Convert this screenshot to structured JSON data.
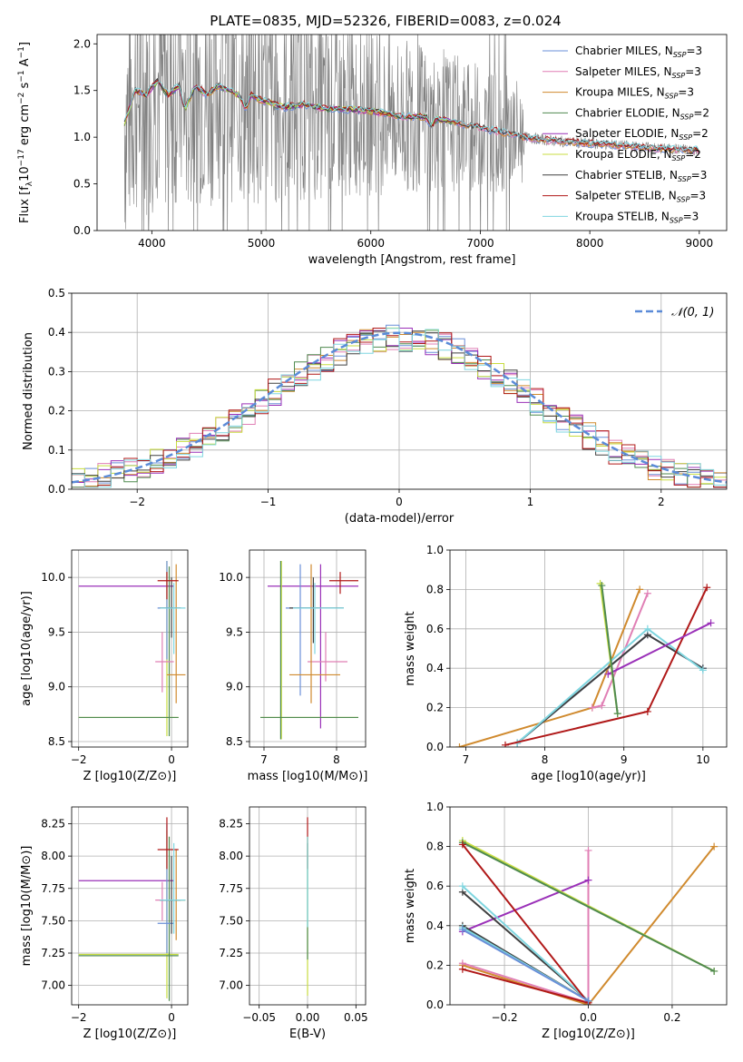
{
  "figure_title": "PLATE=0835, MJD=52326, FIBERID=0083, z=0.024",
  "colors": {
    "Chabrier MILES": "#6a8fd8",
    "Salpeter MILES": "#e07fb5",
    "Kroupa MILES": "#d08a2e",
    "Chabrier ELODIE": "#4f8a4f",
    "Salpeter ELODIE": "#9a30b8",
    "Kroupa ELODIE": "#c8dd40",
    "Chabrier STELIB": "#404040",
    "Salpeter STELIB": "#b01818",
    "Kroupa STELIB": "#7fd6e0",
    "data": "#808080",
    "normal": "#5b8bd8"
  },
  "chart_data": [
    {
      "type": "line",
      "name": "spectrum",
      "xlabel": "wavelength [Angstrom, rest frame]",
      "ylabel": "Flux [f_λ10^-17 erg cm^-2 s^-1 A^-1]",
      "xlim": [
        3500,
        9250
      ],
      "ylim": [
        0,
        2.1
      ],
      "xticks": [
        4000,
        5000,
        6000,
        7000,
        8000,
        9000
      ],
      "yticks": [
        0.0,
        0.5,
        1.0,
        1.5,
        2.0
      ],
      "legend_position": "upper-right",
      "legend": [
        {
          "name": "Chabrier MILES",
          "sub": "SSP",
          "n": "3"
        },
        {
          "name": "Salpeter MILES",
          "sub": "SSP",
          "n": "3"
        },
        {
          "name": "Kroupa MILES",
          "sub": "SSP",
          "n": "3"
        },
        {
          "name": "Chabrier ELODIE",
          "sub": "SSP",
          "n": "2"
        },
        {
          "name": "Salpeter ELODIE",
          "sub": "SSP",
          "n": "2"
        },
        {
          "name": "Kroupa ELODIE",
          "sub": "SSP",
          "n": "2"
        },
        {
          "name": "Chabrier STELIB",
          "sub": "SSP",
          "n": "3"
        },
        {
          "name": "Salpeter STELIB",
          "sub": "SSP",
          "n": "3"
        },
        {
          "name": "Kroupa STELIB",
          "sub": "SSP",
          "n": "3"
        }
      ],
      "model_continuum": [
        [
          3750,
          1.15
        ],
        [
          3850,
          1.5
        ],
        [
          3950,
          1.45
        ],
        [
          4050,
          1.6
        ],
        [
          4150,
          1.45
        ],
        [
          4250,
          1.55
        ],
        [
          4300,
          1.3
        ],
        [
          4400,
          1.55
        ],
        [
          4500,
          1.45
        ],
        [
          4600,
          1.55
        ],
        [
          4700,
          1.5
        ],
        [
          4800,
          1.45
        ],
        [
          4860,
          1.3
        ],
        [
          4900,
          1.45
        ],
        [
          5000,
          1.4
        ],
        [
          5200,
          1.32
        ],
        [
          5400,
          1.35
        ],
        [
          5600,
          1.3
        ],
        [
          5800,
          1.3
        ],
        [
          6000,
          1.28
        ],
        [
          6300,
          1.22
        ],
        [
          6500,
          1.22
        ],
        [
          6560,
          1.12
        ],
        [
          6600,
          1.2
        ],
        [
          6800,
          1.15
        ],
        [
          7000,
          1.1
        ],
        [
          7200,
          1.05
        ],
        [
          7400,
          1.0
        ],
        [
          7600,
          0.97
        ],
        [
          7800,
          0.95
        ],
        [
          8000,
          0.93
        ],
        [
          8200,
          0.92
        ],
        [
          8400,
          0.9
        ],
        [
          8600,
          0.88
        ],
        [
          8800,
          0.87
        ],
        [
          9000,
          0.86
        ]
      ]
    },
    {
      "type": "histogram",
      "name": "residuals",
      "xlabel": "(data-model)/error",
      "ylabel": "Normed distribution",
      "xlim": [
        -2.5,
        2.5
      ],
      "ylim": [
        0,
        0.5
      ],
      "xticks": [
        -2,
        -1,
        0,
        1,
        2
      ],
      "yticks": [
        0.0,
        0.1,
        0.2,
        0.3,
        0.4,
        0.5
      ],
      "bin_width": 0.1,
      "legend_position": "upper-right",
      "legend": [
        "𝒩(0, 1)"
      ],
      "reference_curve": "normal(0,1)"
    },
    {
      "type": "scatter",
      "name": "age-vs-Z",
      "xlabel": "Z [log10(Z/Z⊙)]",
      "ylabel": "age  [log10(age/yr)]",
      "xlim": [
        -2.15,
        0.35
      ],
      "ylim": [
        8.45,
        10.25
      ],
      "xticks": [
        -2,
        0
      ],
      "yticks": [
        8.5,
        9.0,
        9.5,
        10.0
      ],
      "points": [
        {
          "m": "Salpeter ELODIE",
          "x": -0.45,
          "xl": -2.0,
          "xh": 0.05,
          "y": 9.92,
          "yl": 9.92,
          "yh": 9.92
        },
        {
          "m": "Kroupa ELODIE",
          "x": -0.1,
          "xl": -2.0,
          "xh": 0.15,
          "y": 8.72,
          "yl": 8.55,
          "yh": 10.15
        },
        {
          "m": "Chabrier ELODIE",
          "x": -0.05,
          "xl": -2.0,
          "xh": 0.15,
          "y": 8.72,
          "yl": 8.55,
          "yh": 10.1
        },
        {
          "m": "Chabrier MILES",
          "x": -0.1,
          "xl": -0.3,
          "xh": 0.05,
          "y": 9.72,
          "yl": 9.25,
          "yh": 10.15
        },
        {
          "m": "Salpeter MILES",
          "x": -0.2,
          "xl": -0.35,
          "xh": 0.05,
          "y": 9.23,
          "yl": 8.95,
          "yh": 9.5
        },
        {
          "m": "Kroupa MILES",
          "x": 0.1,
          "xl": -0.1,
          "xh": 0.3,
          "y": 9.11,
          "yl": 8.85,
          "yh": 10.12
        },
        {
          "m": "Chabrier STELIB",
          "x": 0.0,
          "xl": -0.25,
          "xh": 0.2,
          "y": 9.72,
          "yl": 9.45,
          "yh": 10.0
        },
        {
          "m": "Salpeter STELIB",
          "x": -0.1,
          "xl": -0.3,
          "xh": 0.15,
          "y": 9.97,
          "yl": 9.8,
          "yh": 10.05
        },
        {
          "m": "Kroupa STELIB",
          "x": 0.05,
          "xl": -0.25,
          "xh": 0.3,
          "y": 9.72,
          "yl": 9.3,
          "yh": 9.95
        }
      ]
    },
    {
      "type": "scatter",
      "name": "age-vs-mass",
      "xlabel": "mass [log10(M/M⊙)]",
      "ylabel": "",
      "xlim": [
        6.8,
        8.4
      ],
      "ylim": [
        8.45,
        10.25
      ],
      "xticks": [
        7,
        8
      ],
      "yticks": [
        8.5,
        9.0,
        9.5,
        10.0
      ],
      "points": [
        {
          "m": "Salpeter ELODIE",
          "x": 7.78,
          "xl": 7.05,
          "xh": 8.3,
          "y": 9.92,
          "yl": 8.62,
          "yh": 10.12
        },
        {
          "m": "Kroupa ELODIE",
          "x": 7.24,
          "xl": 6.95,
          "xh": 8.3,
          "y": 8.72,
          "yl": 8.52,
          "yh": 10.15
        },
        {
          "m": "Chabrier ELODIE",
          "x": 7.23,
          "xl": 6.95,
          "xh": 8.3,
          "y": 8.72,
          "yl": 8.52,
          "yh": 10.15
        },
        {
          "m": "Chabrier MILES",
          "x": 7.5,
          "xl": 7.3,
          "xh": 7.75,
          "y": 9.72,
          "yl": 8.92,
          "yh": 10.12
        },
        {
          "m": "Salpeter MILES",
          "x": 7.85,
          "xl": 7.6,
          "xh": 8.15,
          "y": 9.23,
          "yl": 9.05,
          "yh": 9.5
        },
        {
          "m": "Kroupa MILES",
          "x": 7.65,
          "xl": 7.35,
          "xh": 8.05,
          "y": 9.11,
          "yl": 8.85,
          "yh": 10.12
        },
        {
          "m": "Chabrier STELIB",
          "x": 7.68,
          "xl": 7.35,
          "xh": 8.1,
          "y": 9.72,
          "yl": 9.4,
          "yh": 10.0
        },
        {
          "m": "Salpeter STELIB",
          "x": 8.05,
          "xl": 7.9,
          "xh": 8.3,
          "y": 9.97,
          "yl": 9.85,
          "yh": 10.05
        },
        {
          "m": "Kroupa STELIB",
          "x": 7.7,
          "xl": 7.4,
          "xh": 8.1,
          "y": 9.72,
          "yl": 9.3,
          "yh": 9.95
        }
      ]
    },
    {
      "type": "line",
      "name": "weight-vs-age",
      "xlabel": "age  [log10(age/yr)]",
      "ylabel": "mass weight",
      "xlim": [
        6.8,
        10.3
      ],
      "ylim": [
        0,
        1.0
      ],
      "xticks": [
        7,
        8,
        9,
        10
      ],
      "yticks": [
        0.0,
        0.2,
        0.4,
        0.6,
        0.8,
        1.0
      ],
      "series": [
        {
          "m": "Kroupa MILES",
          "x": [
            6.92,
            8.6,
            9.2
          ],
          "y": [
            0.0,
            0.2,
            0.8
          ]
        },
        {
          "m": "Salpeter MILES",
          "x": [
            8.6,
            8.72,
            9.3
          ],
          "y": [
            0.2,
            0.21,
            0.78
          ]
        },
        {
          "m": "Chabrier MILES",
          "x": [
            7.65,
            9.3,
            10.0
          ],
          "y": [
            0.02,
            0.57,
            0.4
          ]
        },
        {
          "m": "Chabrier STELIB",
          "x": [
            7.65,
            9.3,
            10.0
          ],
          "y": [
            0.02,
            0.57,
            0.4
          ]
        },
        {
          "m": "Kroupa STELIB",
          "x": [
            7.65,
            9.3,
            10.0
          ],
          "y": [
            0.02,
            0.6,
            0.39
          ]
        },
        {
          "m": "Salpeter STELIB",
          "x": [
            7.5,
            9.3,
            10.05
          ],
          "y": [
            0.01,
            0.18,
            0.81
          ]
        },
        {
          "m": "Salpeter ELODIE",
          "x": [
            8.8,
            10.1
          ],
          "y": [
            0.37,
            0.63
          ]
        },
        {
          "m": "Kroupa ELODIE",
          "x": [
            8.7,
            8.92
          ],
          "y": [
            0.83,
            0.17
          ]
        },
        {
          "m": "Chabrier ELODIE",
          "x": [
            8.72,
            8.92
          ],
          "y": [
            0.82,
            0.17
          ]
        }
      ]
    },
    {
      "type": "scatter",
      "name": "mass-vs-Z",
      "xlabel": "Z [log10(Z/Z⊙)]",
      "ylabel": "mass [log10(M/M⊙)]",
      "xlim": [
        -2.15,
        0.35
      ],
      "ylim": [
        6.85,
        8.38
      ],
      "xticks": [
        -2,
        0
      ],
      "yticks": [
        7.0,
        7.25,
        7.5,
        7.75,
        8.0,
        8.25
      ],
      "points": [
        {
          "m": "Salpeter ELODIE",
          "x": -0.45,
          "xl": -2.0,
          "xh": 0.05,
          "y": 7.81,
          "yl": 7.81,
          "yh": 7.81
        },
        {
          "m": "Kroupa ELODIE",
          "x": -0.1,
          "xl": -2.0,
          "xh": 0.15,
          "y": 7.24,
          "yl": 6.9,
          "yh": 8.2
        },
        {
          "m": "Chabrier ELODIE",
          "x": -0.05,
          "xl": -2.0,
          "xh": 0.15,
          "y": 7.23,
          "yl": 6.88,
          "yh": 8.15
        },
        {
          "m": "Chabrier MILES",
          "x": -0.1,
          "xl": -0.3,
          "xh": 0.05,
          "y": 7.48,
          "yl": 7.25,
          "yh": 8.25
        },
        {
          "m": "Salpeter MILES",
          "x": -0.2,
          "xl": -0.35,
          "xh": 0.05,
          "y": 7.66,
          "yl": 7.5,
          "yh": 7.8
        },
        {
          "m": "Kroupa MILES",
          "x": 0.1,
          "xl": -0.1,
          "xh": 0.3,
          "y": 7.66,
          "yl": 7.35,
          "yh": 8.05
        },
        {
          "m": "Chabrier STELIB",
          "x": 0.0,
          "xl": -0.25,
          "xh": 0.2,
          "y": 7.66,
          "yl": 7.4,
          "yh": 8.0
        },
        {
          "m": "Salpeter STELIB",
          "x": -0.1,
          "xl": -0.3,
          "xh": 0.15,
          "y": 8.05,
          "yl": 7.9,
          "yh": 8.3
        },
        {
          "m": "Kroupa STELIB",
          "x": 0.05,
          "xl": -0.25,
          "xh": 0.3,
          "y": 7.66,
          "yl": 7.4,
          "yh": 8.1
        }
      ]
    },
    {
      "type": "scatter",
      "name": "mass-vs-EBV",
      "xlabel": "E(B-V)",
      "ylabel": "",
      "xlim": [
        -0.06,
        0.06
      ],
      "ylim": [
        6.85,
        8.38
      ],
      "xticks": [
        -0.05,
        0.0,
        0.05
      ],
      "xticklabels": [
        "−0.05",
        "0.00",
        "0.05"
      ],
      "yticks": [
        7.0,
        7.25,
        7.5,
        7.75,
        8.0,
        8.25
      ],
      "points": [
        {
          "m": "Kroupa ELODIE",
          "x": 0.0,
          "yl": 6.92,
          "yh": 8.15
        },
        {
          "m": "Chabrier ELODIE",
          "x": 0.0,
          "yl": 7.2,
          "yh": 8.1
        },
        {
          "m": "Salpeter STELIB",
          "x": 0.0,
          "yl": 7.9,
          "yh": 8.3
        },
        {
          "m": "Kroupa STELIB",
          "x": 0.0,
          "yl": 7.45,
          "yh": 8.15
        }
      ]
    },
    {
      "type": "line",
      "name": "weight-vs-Z",
      "xlabel": "Z [log10(Z/Z⊙)]",
      "ylabel": "mass weight",
      "xlim": [
        -0.33,
        0.33
      ],
      "ylim": [
        0,
        1.0
      ],
      "xticks": [
        -0.2,
        0.0,
        0.2
      ],
      "xticklabels": [
        "−0.2",
        "0.0",
        "0.2"
      ],
      "yticks": [
        0.0,
        0.2,
        0.4,
        0.6,
        0.8,
        1.0
      ],
      "series": [
        {
          "m": "Kroupa MILES",
          "x": [
            -0.3,
            0.0,
            0.3
          ],
          "y": [
            0.2,
            0.0,
            0.8
          ]
        },
        {
          "m": "Salpeter MILES",
          "x": [
            -0.3,
            0.0,
            0.0
          ],
          "y": [
            0.21,
            0.01,
            0.78
          ]
        },
        {
          "m": "Salpeter ELODIE",
          "x": [
            -0.3,
            0.0
          ],
          "y": [
            0.37,
            0.63
          ]
        },
        {
          "m": "Kroupa ELODIE",
          "x": [
            -0.3,
            0.3
          ],
          "y": [
            0.83,
            0.17
          ]
        },
        {
          "m": "Chabrier ELODIE",
          "x": [
            -0.3,
            0.3
          ],
          "y": [
            0.82,
            0.17
          ]
        },
        {
          "m": "Chabrier STELIB",
          "x": [
            -0.3,
            0.0,
            -0.3
          ],
          "y": [
            0.4,
            0.02,
            0.57
          ]
        },
        {
          "m": "Kroupa STELIB",
          "x": [
            -0.3,
            0.0,
            -0.3
          ],
          "y": [
            0.39,
            0.02,
            0.6
          ]
        },
        {
          "m": "Salpeter STELIB",
          "x": [
            -0.3,
            0.0,
            -0.3
          ],
          "y": [
            0.18,
            0.01,
            0.81
          ]
        },
        {
          "m": "Chabrier MILES",
          "x": [
            -0.3,
            0.0
          ],
          "y": [
            0.38,
            0.02
          ]
        }
      ]
    }
  ]
}
